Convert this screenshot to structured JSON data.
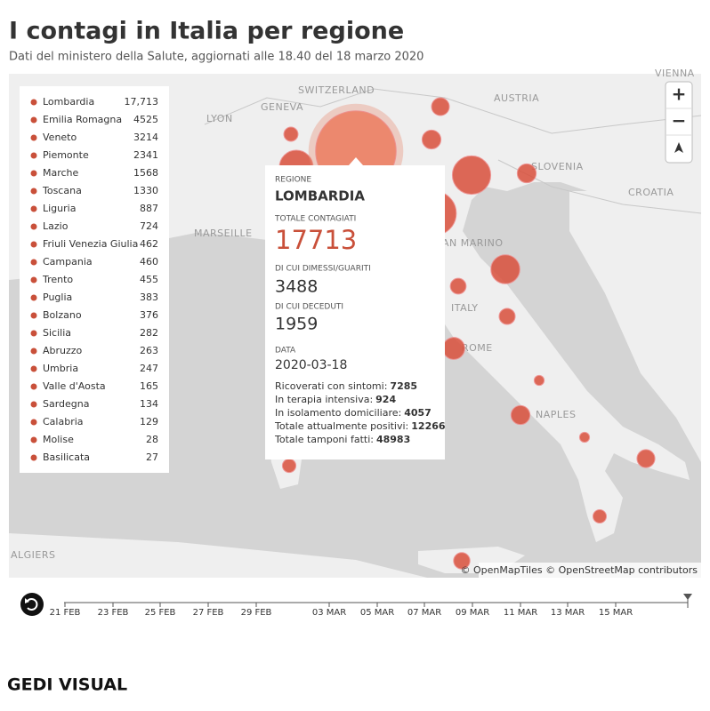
{
  "header": {
    "title": "I contagi in Italia per regione",
    "subtitle": "Dati del ministero della Salute, aggiornati alle 18.40 del 18 marzo 2020"
  },
  "map_labels": [
    "SWITZERLAND",
    "GENEVA",
    "LYON",
    "AUSTRIA",
    "VIENNA",
    "SLOVENIA",
    "CROATIA",
    "MARSEILLE",
    "AN MARINO",
    "ITALY",
    "ROME",
    "NAPLES",
    "ALGIERS"
  ],
  "regions": [
    {
      "name": "Lombardia",
      "value": 17713,
      "label": "17,713"
    },
    {
      "name": "Emilia Romagna",
      "value": 4525
    },
    {
      "name": "Veneto",
      "value": 3214
    },
    {
      "name": "Piemonte",
      "value": 2341
    },
    {
      "name": "Marche",
      "value": 1568
    },
    {
      "name": "Toscana",
      "value": 1330
    },
    {
      "name": "Liguria",
      "value": 887
    },
    {
      "name": "Lazio",
      "value": 724
    },
    {
      "name": "Friuli Venezia Giulia",
      "value": 462
    },
    {
      "name": "Campania",
      "value": 460
    },
    {
      "name": "Trento",
      "value": 455
    },
    {
      "name": "Puglia",
      "value": 383
    },
    {
      "name": "Bolzano",
      "value": 376
    },
    {
      "name": "Sicilia",
      "value": 282
    },
    {
      "name": "Abruzzo",
      "value": 263
    },
    {
      "name": "Umbria",
      "value": 247
    },
    {
      "name": "Valle d'Aosta",
      "value": 165
    },
    {
      "name": "Sardegna",
      "value": 134
    },
    {
      "name": "Calabria",
      "value": 129
    },
    {
      "name": "Molise",
      "value": 28
    },
    {
      "name": "Basilicata",
      "value": 27
    }
  ],
  "tooltip": {
    "region_label": "REGIONE",
    "region": "LOMBARDIA",
    "total_label": "TOTALE CONTAGIATI",
    "total": "17713",
    "recovered_label": "DI CUI DIMESSI/GUARITI",
    "recovered": "3488",
    "deaths_label": "DI CUI DECEDUTI",
    "deaths": "1959",
    "date_label": "DATA",
    "date": "2020-03-18",
    "stats": [
      {
        "label": "Ricoverati con sintomi:",
        "value": "7285"
      },
      {
        "label": "In terapia intensiva:",
        "value": "924"
      },
      {
        "label": "In isolamento domiciliare:",
        "value": "4057"
      },
      {
        "label": "Totale attualmente positivi:",
        "value": "12266"
      },
      {
        "label": "Totale tamponi fatti:",
        "value": "48983"
      }
    ]
  },
  "controls": {
    "zoom_in": "+",
    "zoom_out": "−"
  },
  "attribution": "© OpenMapTiles © OpenStreetMap contributors",
  "timeline": [
    "21 FEB",
    "23 FEB",
    "25 FEB",
    "27 FEB",
    "29 FEB",
    "03 MAR",
    "05 MAR",
    "07 MAR",
    "09 MAR",
    "11 MAR",
    "13 MAR",
    "15 MAR"
  ],
  "footer": {
    "logo": "GEDI VISUAL"
  }
}
